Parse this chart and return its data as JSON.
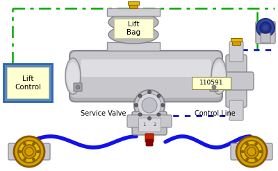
{
  "green_dash_color": "#00aa00",
  "blue_line_color": "#1111ee",
  "blue_dot_color": "#1111cc",
  "lift_control_text": "Lift\nControl",
  "part_label": "110591",
  "service_valve_label": "Service Valve",
  "control_line_label": "Control Line",
  "tank_facecolor": "#c8c8cc",
  "tank_highlight": "#e8e8ea",
  "tank_shadow": "#a0a0a4",
  "lift_bag_color": "#b0b0b4",
  "wheel_gold": "#d4a000",
  "wheel_gold2": "#c89000",
  "fitting_gold": "#d4a000",
  "gray_light": "#d8d8d8",
  "gray_mid": "#b8b8b8",
  "blue_connector": "#3355aa"
}
